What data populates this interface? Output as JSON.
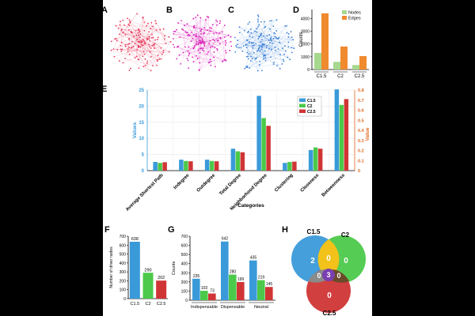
{
  "panels": {
    "a": "A",
    "b": "B",
    "c": "C",
    "d": "D",
    "e": "E",
    "f": "F",
    "g": "G",
    "h": "H"
  },
  "colors": {
    "c15": "#3a9ad9",
    "c2": "#4cc94a",
    "c25": "#d03535",
    "nodes": "#a6d88e",
    "edges": "#f08a2e",
    "netA": "#e8385a",
    "netB": "#d81fb8",
    "netC": "#3a7fd8",
    "venn3": "#7a3fb0",
    "venn12": "#f2c21a",
    "vennGray": "#8a8a8a",
    "venn23": "#6b4a2a"
  },
  "chart_data": [
    {
      "id": "D",
      "type": "bar",
      "categories": [
        "C1.5",
        "C2",
        "C2.5"
      ],
      "series": [
        {
          "name": "Nodes",
          "values": [
            1300,
            600,
            350
          ]
        },
        {
          "name": "Edges",
          "values": [
            4400,
            1800,
            1050
          ]
        }
      ],
      "ylabel": "Counts",
      "yticks": [
        0,
        1000,
        2000,
        3000,
        4000
      ],
      "ylim": [
        0,
        4700
      ]
    },
    {
      "id": "E",
      "type": "bar",
      "categories": [
        "Average Shortest Path",
        "Indegree",
        "Outdegree",
        "Total Degree",
        "Neighborhood Degree",
        "Clustering",
        "Closeness",
        "Betweenness"
      ],
      "series": [
        {
          "name": "C1.5",
          "values": [
            2.7,
            3.4,
            3.4,
            6.8,
            23.2,
            2.4,
            6.4,
            25.2
          ]
        },
        {
          "name": "C2",
          "values": [
            2.4,
            3.0,
            3.0,
            6.0,
            16.3,
            2.7,
            7.2,
            20.4
          ]
        },
        {
          "name": "C2.5",
          "values": [
            2.6,
            2.9,
            2.9,
            5.7,
            13.9,
            2.8,
            6.8,
            22.2
          ]
        }
      ],
      "ylabel": "Values",
      "y2label": "Value",
      "xlabel": "Categories",
      "yticks": [
        0,
        5,
        10,
        15,
        20,
        25
      ],
      "ylim": [
        0,
        25
      ],
      "y2ticks": [
        "0",
        "0.1",
        "0.2",
        "0.3",
        "0.4",
        "0.5",
        "0.6",
        "0.7",
        "0.8"
      ],
      "legend": [
        "C1.5",
        "C2",
        "C2.5"
      ]
    },
    {
      "id": "F",
      "type": "bar",
      "categories": [
        "C1.5",
        "C2",
        "C2.5"
      ],
      "values": [
        638,
        290,
        202
      ],
      "labels": [
        "638",
        "290",
        "202"
      ],
      "ylabel": "Number of driver nodes",
      "yticks": [
        0,
        100,
        200,
        300,
        400,
        500,
        600,
        700
      ],
      "ylim": [
        0,
        700
      ]
    },
    {
      "id": "G",
      "type": "bar",
      "categories": [
        "Indispensable",
        "Dispensable",
        "Neutral"
      ],
      "series": [
        {
          "name": "C1.5",
          "values": [
            235,
            642,
            435
          ]
        },
        {
          "name": "C2",
          "values": [
            103,
            280,
            219
          ]
        },
        {
          "name": "C2.5",
          "values": [
            73,
            199,
            145
          ]
        }
      ],
      "labels": [
        [
          "235",
          "103",
          "73"
        ],
        [
          "642",
          "280",
          "199"
        ],
        [
          "435",
          "219",
          "145"
        ]
      ],
      "ylabel": "Counts",
      "yticks": [
        0,
        100,
        200,
        300,
        400,
        500,
        600,
        700
      ],
      "ylim": [
        0,
        700
      ]
    },
    {
      "id": "H",
      "type": "venn",
      "sets": [
        "C1.5",
        "C2",
        "C2.5"
      ],
      "regions": {
        "only1": "2",
        "only2": "0",
        "only3": "0",
        "r12": "0",
        "r13": "0",
        "r23": "0",
        "r123": "3"
      }
    }
  ]
}
